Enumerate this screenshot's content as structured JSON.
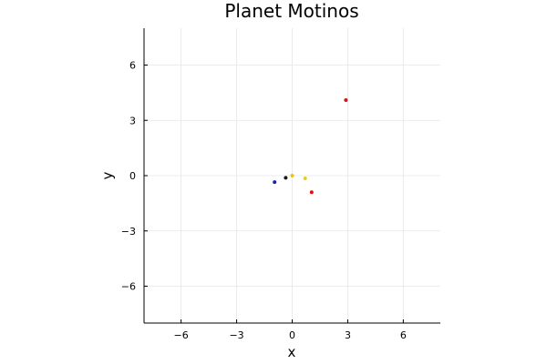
{
  "chart_data": {
    "type": "scatter",
    "title": "Planet Motinos",
    "xlabel": "x",
    "ylabel": "y",
    "xlim": [
      -8,
      8
    ],
    "ylim": [
      -8,
      8
    ],
    "xticks": [
      -6,
      -3,
      0,
      3,
      6
    ],
    "yticks": [
      -6,
      -3,
      0,
      3,
      6
    ],
    "xtick_labels": [
      "−6",
      "−3",
      "0",
      "3",
      "6"
    ],
    "ytick_labels": [
      "−6",
      "−3",
      "0",
      "3",
      "6"
    ],
    "grid": true,
    "legend": "none",
    "aspect": "equal",
    "points": [
      {
        "x": -0.95,
        "y": -0.35,
        "color": "#1f1fb4"
      },
      {
        "x": -0.35,
        "y": -0.12,
        "color": "#1a1a1a"
      },
      {
        "x": 0.0,
        "y": 0.0,
        "color": "#f2c500"
      },
      {
        "x": 0.7,
        "y": -0.15,
        "color": "#e8d400"
      },
      {
        "x": 1.05,
        "y": -0.9,
        "color": "#e01010"
      },
      {
        "x": 2.9,
        "y": 4.1,
        "color": "#c81818"
      }
    ]
  }
}
